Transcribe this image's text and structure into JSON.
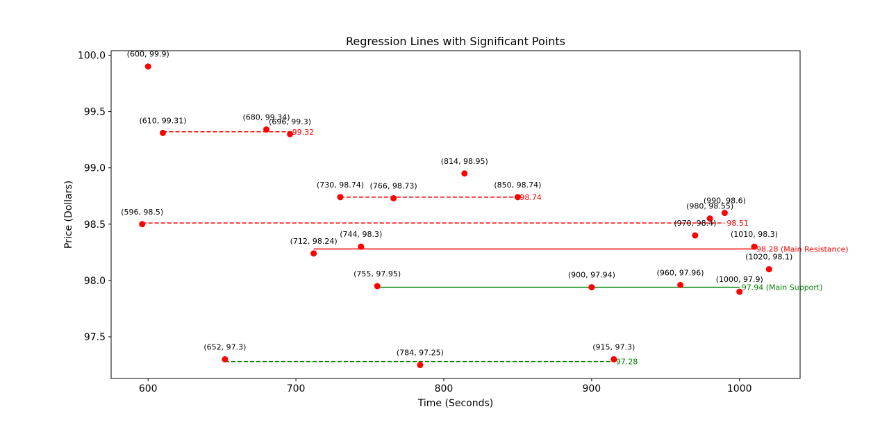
{
  "chart_data": {
    "type": "scatter",
    "title": "Regression Lines with Significant Points",
    "xlabel": "Time (Seconds)",
    "ylabel": "Price (Dollars)",
    "xlim": [
      575,
      1041
    ],
    "ylim": [
      97.13,
      100.04
    ],
    "xticks": [
      600,
      700,
      800,
      900,
      1000
    ],
    "yticks": [
      97.5,
      98.0,
      98.5,
      99.0,
      99.5,
      100.0
    ],
    "ytick_labels": [
      "97.5",
      "98.0",
      "98.5",
      "99.0",
      "99.5",
      "100.0"
    ],
    "grid": false,
    "point_color": "#ff0000",
    "points": [
      {
        "x": 600,
        "y": 99.9,
        "label": "(600, 99.9)"
      },
      {
        "x": 610,
        "y": 99.31,
        "label": "(610, 99.31)"
      },
      {
        "x": 680,
        "y": 99.34,
        "label": "(680, 99.34)"
      },
      {
        "x": 696,
        "y": 99.3,
        "label": "(696, 99.3)"
      },
      {
        "x": 814,
        "y": 98.95,
        "label": "(814, 98.95)"
      },
      {
        "x": 730,
        "y": 98.74,
        "label": "(730, 98.74)"
      },
      {
        "x": 766,
        "y": 98.73,
        "label": "(766, 98.73)"
      },
      {
        "x": 850,
        "y": 98.74,
        "label": "(850, 98.74)"
      },
      {
        "x": 596,
        "y": 98.5,
        "label": "(596, 98.5)"
      },
      {
        "x": 990,
        "y": 98.6,
        "label": "(990, 98.6)"
      },
      {
        "x": 980,
        "y": 98.55,
        "label": "(980, 98.55)"
      },
      {
        "x": 970,
        "y": 98.4,
        "label": "(970, 98.4)"
      },
      {
        "x": 712,
        "y": 98.24,
        "label": "(712, 98.24)"
      },
      {
        "x": 744,
        "y": 98.3,
        "label": "(744, 98.3)"
      },
      {
        "x": 1010,
        "y": 98.3,
        "label": "(1010, 98.3)"
      },
      {
        "x": 1020,
        "y": 98.1,
        "label": "(1020, 98.1)"
      },
      {
        "x": 755,
        "y": 97.95,
        "label": "(755, 97.95)"
      },
      {
        "x": 900,
        "y": 97.94,
        "label": "(900, 97.94)"
      },
      {
        "x": 960,
        "y": 97.96,
        "label": "(960, 97.96)"
      },
      {
        "x": 1000,
        "y": 97.9,
        "label": "(1000, 97.9)"
      },
      {
        "x": 652,
        "y": 97.3,
        "label": "(652, 97.3)"
      },
      {
        "x": 784,
        "y": 97.25,
        "label": "(784, 97.25)"
      },
      {
        "x": 915,
        "y": 97.3,
        "label": "(915, 97.3)"
      }
    ],
    "lines": [
      {
        "x1": 610,
        "x2": 696,
        "y": 99.32,
        "style": "dashed",
        "color": "#ff0000",
        "label": "99.32"
      },
      {
        "x1": 730,
        "x2": 850,
        "y": 98.74,
        "style": "dashed",
        "color": "#ff0000",
        "label": "98.74"
      },
      {
        "x1": 596,
        "x2": 990,
        "y": 98.51,
        "style": "dashed",
        "color": "#ff0000",
        "label": "98.51"
      },
      {
        "x1": 712,
        "x2": 1010,
        "y": 98.28,
        "style": "solid",
        "color": "#ff0000",
        "label": "98.28 (Main Resistance)"
      },
      {
        "x1": 755,
        "x2": 1000,
        "y": 97.94,
        "style": "solid",
        "color": "#008000",
        "label": "97.94 (Main Support)"
      },
      {
        "x1": 652,
        "x2": 915,
        "y": 97.28,
        "style": "dashed",
        "color": "#008000",
        "label": "97.28"
      }
    ]
  }
}
